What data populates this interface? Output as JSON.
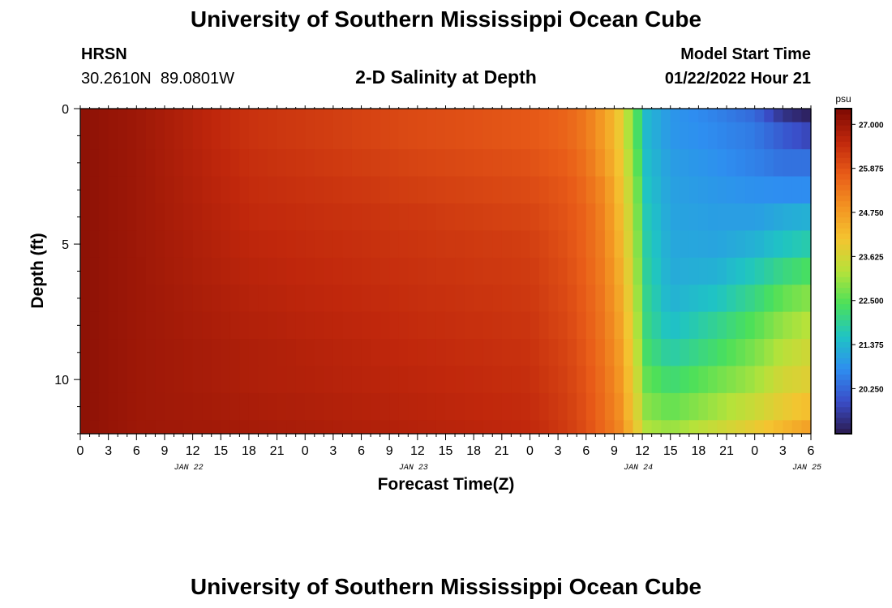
{
  "header": {
    "title": "University of Southern Mississippi Ocean Cube",
    "station": "HRSN",
    "coordinates": "30.2610N  89.0801W",
    "subtitle": "2-D Salinity at Depth",
    "model_start_label": "Model Start Time",
    "model_start_time": "01/22/2022 Hour 21"
  },
  "footer": {
    "title": "University of Southern Mississippi Ocean Cube"
  },
  "chart_data": {
    "type": "heatmap",
    "xlabel": "Forecast Time(Z)",
    "ylabel": "Depth (ft)",
    "x_hour_ticks": [
      "0",
      "3",
      "6",
      "9",
      "12",
      "15",
      "18",
      "21",
      "0",
      "3",
      "6",
      "9",
      "12",
      "15",
      "18",
      "21",
      "0",
      "3",
      "6",
      "9",
      "12",
      "15",
      "18",
      "21",
      "0",
      "3",
      "6"
    ],
    "x_day_labels": [
      {
        "label": "JAN 22",
        "at_hour": 12
      },
      {
        "label": "JAN 23",
        "at_hour": 36
      },
      {
        "label": "JAN 24",
        "at_hour": 60
      },
      {
        "label": "JAN 25",
        "at_hour": 78
      }
    ],
    "x_range_hours": [
      0,
      78
    ],
    "y_ticks": [
      "0",
      "5",
      "10"
    ],
    "y_range": [
      0,
      12
    ],
    "y_inverted": true,
    "colorbar": {
      "unit": "psu",
      "range": [
        19.1,
        27.4
      ],
      "tick_labels": [
        "27.000",
        "25.875",
        "24.750",
        "23.625",
        "22.500",
        "21.375",
        "20.250"
      ],
      "tick_values": [
        27.0,
        25.875,
        24.75,
        23.625,
        22.5,
        21.375,
        20.25
      ],
      "colors": [
        "#2b1a4e",
        "#3a4dc8",
        "#2e8ef0",
        "#1fc4c4",
        "#4be05a",
        "#b6e23a",
        "#f4c430",
        "#f39322",
        "#e85b18",
        "#c0270c",
        "#7d0a03"
      ]
    },
    "grid": {
      "depths_ft": [
        0,
        1,
        2,
        3,
        4,
        5,
        6,
        7,
        8,
        9,
        10,
        11,
        12
      ],
      "key_hours": [
        0,
        6,
        18,
        36,
        48,
        52,
        54,
        56,
        57.5,
        59,
        60.5,
        63,
        68,
        72,
        75,
        78
      ],
      "salinity_psu": [
        [
          27.2,
          27.0,
          26.4,
          26.0,
          25.8,
          25.6,
          25.3,
          24.7,
          24.0,
          22.8,
          21.4,
          20.9,
          20.6,
          20.3,
          19.5,
          19.2
        ],
        [
          27.2,
          27.0,
          26.4,
          26.0,
          25.8,
          25.6,
          25.3,
          24.7,
          24.0,
          22.8,
          21.4,
          20.9,
          20.7,
          20.5,
          20.1,
          19.8
        ],
        [
          27.2,
          27.0,
          26.45,
          26.1,
          25.9,
          25.7,
          25.4,
          24.8,
          24.1,
          23.0,
          21.5,
          21.0,
          20.8,
          20.6,
          20.4,
          20.4
        ],
        [
          27.2,
          27.0,
          26.5,
          26.2,
          26.0,
          25.8,
          25.5,
          25.0,
          24.2,
          23.2,
          21.6,
          21.05,
          20.9,
          20.8,
          20.75,
          20.75
        ],
        [
          27.2,
          27.0,
          26.55,
          26.3,
          26.1,
          25.85,
          25.6,
          25.1,
          24.3,
          23.3,
          21.7,
          21.1,
          21.0,
          21.0,
          21.2,
          21.3
        ],
        [
          27.2,
          27.0,
          26.6,
          26.35,
          26.2,
          25.9,
          25.6,
          25.15,
          24.4,
          23.4,
          21.8,
          21.15,
          21.1,
          21.3,
          21.6,
          21.8
        ],
        [
          27.2,
          27.0,
          26.65,
          26.4,
          26.25,
          25.95,
          25.65,
          25.2,
          24.5,
          23.5,
          21.9,
          21.2,
          21.3,
          21.7,
          22.1,
          22.4
        ],
        [
          27.2,
          27.0,
          26.7,
          26.45,
          26.3,
          26.0,
          25.7,
          25.25,
          24.6,
          23.6,
          22.0,
          21.3,
          21.6,
          22.1,
          22.6,
          22.9
        ],
        [
          27.2,
          27.0,
          26.75,
          26.5,
          26.35,
          26.05,
          25.75,
          25.3,
          24.7,
          23.7,
          22.1,
          21.5,
          22.0,
          22.5,
          23.0,
          23.3
        ],
        [
          27.2,
          27.0,
          26.8,
          26.55,
          26.4,
          26.1,
          25.8,
          25.35,
          24.8,
          23.8,
          22.3,
          21.8,
          22.3,
          22.8,
          23.3,
          23.6
        ],
        [
          27.2,
          27.0,
          26.8,
          26.6,
          26.45,
          26.15,
          25.85,
          25.4,
          24.9,
          23.9,
          22.6,
          22.2,
          22.7,
          23.1,
          23.6,
          23.8
        ],
        [
          27.2,
          27.0,
          26.85,
          26.65,
          26.5,
          26.2,
          25.9,
          25.45,
          25.0,
          24.0,
          22.9,
          22.6,
          23.1,
          23.5,
          23.9,
          24.2
        ],
        [
          27.2,
          27.0,
          26.9,
          26.7,
          26.55,
          26.25,
          25.95,
          25.5,
          25.1,
          24.2,
          23.2,
          23.0,
          23.5,
          23.9,
          24.3,
          24.7
        ]
      ]
    }
  }
}
